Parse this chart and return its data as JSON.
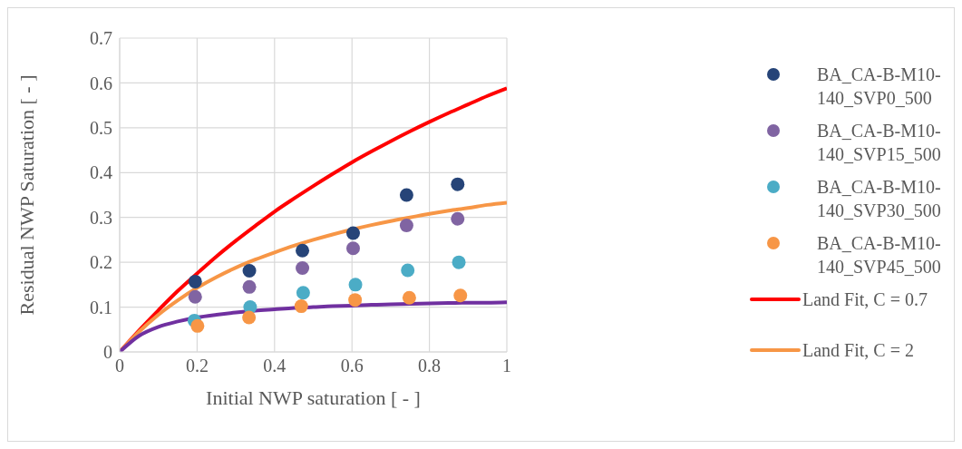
{
  "chart_data": {
    "type": "scatter",
    "xlabel": "Initial NWP saturation [ - ]",
    "ylabel": "Residual NWP Saturation [ - ]",
    "xlim": [
      0,
      1
    ],
    "ylim": [
      0,
      0.7
    ],
    "xticks": [
      0,
      0.2,
      0.4,
      0.6,
      0.8,
      1
    ],
    "yticks": [
      0,
      0.1,
      0.2,
      0.3,
      0.4,
      0.5,
      0.6,
      0.7
    ],
    "grid": true,
    "legend": "right",
    "series": [
      {
        "name": "BA_CA-B-M10-140_SVP0_500",
        "color": "#264478",
        "x": [
          0.195,
          0.335,
          0.472,
          0.603,
          0.741,
          0.873
        ],
        "values": [
          0.157,
          0.181,
          0.226,
          0.265,
          0.35,
          0.374
        ]
      },
      {
        "name": "BA_CA-B-M10-140_SVP15_500",
        "color": "#8064a2",
        "x": [
          0.195,
          0.335,
          0.472,
          0.603,
          0.741,
          0.873
        ],
        "values": [
          0.123,
          0.145,
          0.187,
          0.231,
          0.282,
          0.297
        ]
      },
      {
        "name": "BA_CA-B-M10-140_SVP30_500",
        "color": "#4bacc6",
        "x": [
          0.193,
          0.337,
          0.474,
          0.609,
          0.744,
          0.876
        ],
        "values": [
          0.07,
          0.1,
          0.132,
          0.15,
          0.182,
          0.2
        ]
      },
      {
        "name": "BA_CA-B-M10-140_SVP45_500",
        "color": "#f79646",
        "x": [
          0.201,
          0.334,
          0.469,
          0.608,
          0.748,
          0.88
        ],
        "values": [
          0.058,
          0.077,
          0.102,
          0.116,
          0.121,
          0.126
        ]
      },
      {
        "name": "Land Fit, C = 0.7",
        "type": "line",
        "color": "#ff0000",
        "x": [
          0,
          0.05,
          0.1,
          0.15,
          0.2,
          0.25,
          0.3,
          0.35,
          0.4,
          0.45,
          0.5,
          0.55,
          0.6,
          0.65,
          0.7,
          0.75,
          0.8,
          0.85,
          0.9,
          0.95,
          1
        ],
        "values": [
          0,
          0.048,
          0.093,
          0.136,
          0.175,
          0.213,
          0.248,
          0.281,
          0.313,
          0.342,
          0.37,
          0.397,
          0.423,
          0.447,
          0.47,
          0.492,
          0.513,
          0.533,
          0.552,
          0.571,
          0.588
        ]
      },
      {
        "name": "Land Fit, C = 2",
        "type": "line",
        "color": "#f79646",
        "x": [
          0,
          0.05,
          0.1,
          0.15,
          0.2,
          0.25,
          0.3,
          0.35,
          0.4,
          0.45,
          0.5,
          0.55,
          0.6,
          0.65,
          0.7,
          0.75,
          0.8,
          0.85,
          0.9,
          0.95,
          1
        ],
        "values": [
          0,
          0.045,
          0.083,
          0.115,
          0.143,
          0.167,
          0.188,
          0.206,
          0.222,
          0.237,
          0.25,
          0.262,
          0.273,
          0.283,
          0.292,
          0.3,
          0.308,
          0.315,
          0.321,
          0.328,
          0.333
        ]
      },
      {
        "type": "line",
        "color": "#7030a0",
        "x": [
          0,
          0.05,
          0.1,
          0.15,
          0.2,
          0.25,
          0.3,
          0.35,
          0.4,
          0.45,
          0.5,
          0.55,
          0.6,
          0.65,
          0.7,
          0.75,
          0.8,
          0.85,
          0.9,
          0.95,
          1
        ],
        "values": [
          0,
          0.036,
          0.056,
          0.068,
          0.077,
          0.083,
          0.088,
          0.092,
          0.095,
          0.098,
          0.1,
          0.102,
          0.103,
          0.105,
          0.106,
          0.107,
          0.108,
          0.109,
          0.11,
          0.11,
          0.111
        ]
      }
    ]
  }
}
